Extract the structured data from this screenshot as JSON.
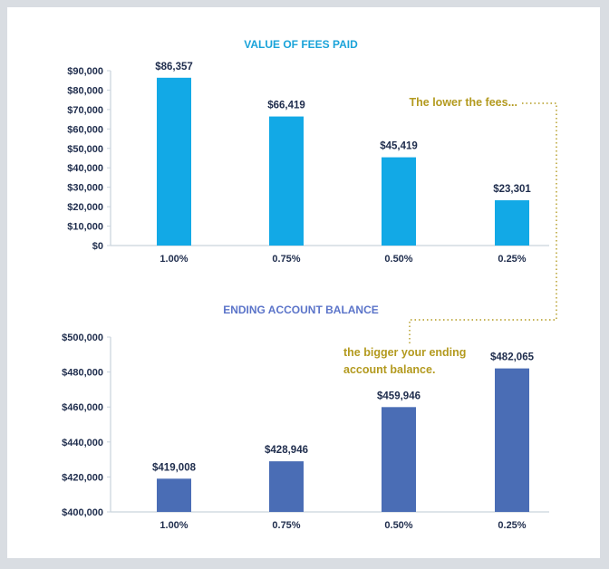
{
  "chart_data": [
    {
      "type": "bar",
      "title": "VALUE OF FEES PAID",
      "categories": [
        "1.00%",
        "0.75%",
        "0.50%",
        "0.25%"
      ],
      "values": [
        86357,
        66419,
        45419,
        23301
      ],
      "value_labels": [
        "$86,357",
        "$66,419",
        "$45,419",
        "$23,301"
      ],
      "ylim": [
        0,
        90000
      ],
      "yticks": [
        0,
        10000,
        20000,
        30000,
        40000,
        50000,
        60000,
        70000,
        80000,
        90000
      ],
      "ytick_labels": [
        "$0",
        "$10,000",
        "$20,000",
        "$30,000",
        "$40,000",
        "$50,000",
        "$60,000",
        "$70,000",
        "$80,000",
        "$90,000"
      ],
      "bar_color": "#12a9e6",
      "title_color": "#1aa3d9",
      "grid": false
    },
    {
      "type": "bar",
      "title": "ENDING ACCOUNT BALANCE",
      "categories": [
        "1.00%",
        "0.75%",
        "0.50%",
        "0.25%"
      ],
      "values": [
        419008,
        428946,
        459946,
        482065
      ],
      "value_labels": [
        "$419,008",
        "$428,946",
        "$459,946",
        "$482,065"
      ],
      "ylim": [
        400000,
        500000
      ],
      "yticks": [
        400000,
        420000,
        440000,
        460000,
        480000,
        500000
      ],
      "ytick_labels": [
        "$400,000",
        "$420,000",
        "$440,000",
        "$460,000",
        "$480,000",
        "$500,000"
      ],
      "bar_color": "#4a6db5",
      "title_color": "#5b74c9",
      "grid": false
    }
  ],
  "annotations": {
    "top": "The lower the fees...",
    "bottom_line1": "the bigger your ending",
    "bottom_line2": "account balance.",
    "color": "#b39a1f"
  }
}
